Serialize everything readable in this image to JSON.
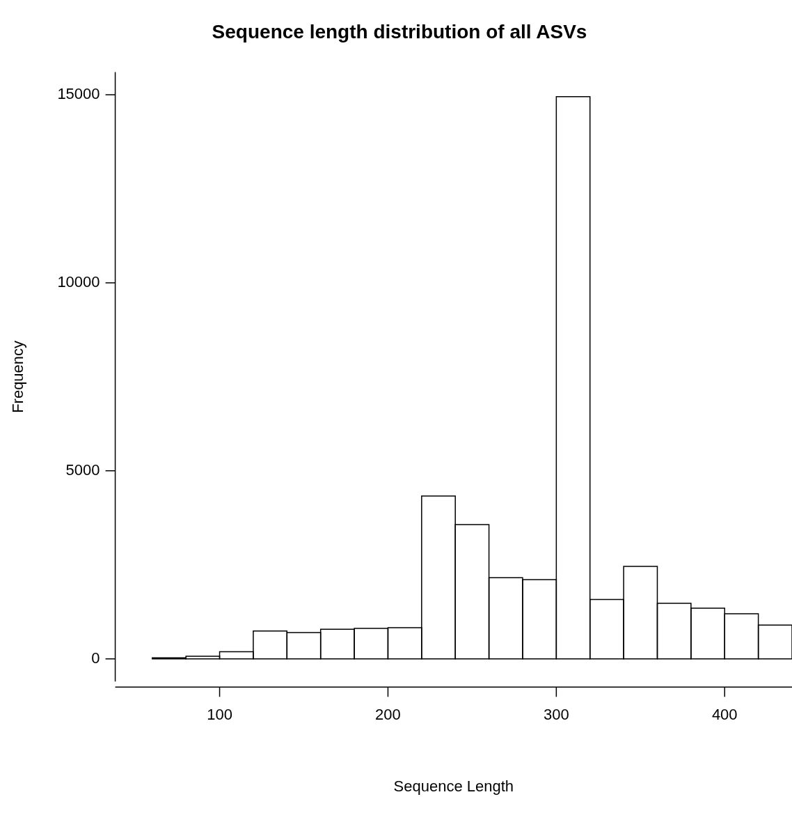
{
  "chart_data": {
    "type": "histogram",
    "title": "Sequence length distribution of all ASVs",
    "xlabel": "Sequence Length",
    "ylabel": "Frequency",
    "bins": [
      60,
      80,
      100,
      120,
      140,
      160,
      180,
      200,
      220,
      240,
      260,
      280,
      300,
      320,
      340,
      360,
      380,
      400,
      420,
      440
    ],
    "values": [
      30,
      70,
      190,
      740,
      700,
      790,
      810,
      830,
      4330,
      3570,
      2160,
      2110,
      14950,
      1580,
      2460,
      1480,
      1350,
      1200,
      900
    ],
    "color": "#ffffff",
    "xlim": [
      38,
      440
    ],
    "xticks": [
      100,
      200,
      300,
      400
    ],
    "ylim": [
      -600,
      15600
    ],
    "yticks": [
      {
        "value": 0,
        "label": "0"
      },
      {
        "value": 5000,
        "label": "5000"
      },
      {
        "value": 10000,
        "label": "10000"
      },
      {
        "value": 15000,
        "label": "15000"
      }
    ],
    "grid": false,
    "legend": false
  }
}
